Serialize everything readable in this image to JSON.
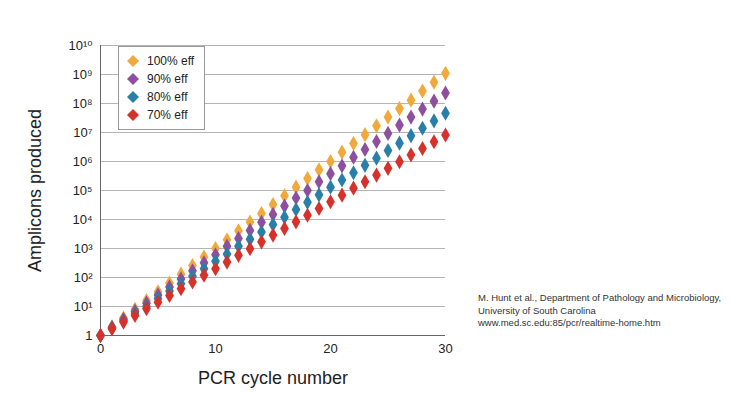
{
  "chart_data": {
    "type": "scatter",
    "x_label": "PCR cycle number",
    "y_label": "Amplicons produced",
    "source": "M. Hunt et al., Department of Pathology and Microbiology, University of South Carolina www.med.sc.edu:85/pcr/realtime-home.htm",
    "x": [
      0,
      1,
      2,
      3,
      4,
      5,
      6,
      7,
      8,
      9,
      10,
      11,
      12,
      13,
      14,
      15,
      16,
      17,
      18,
      19,
      20,
      21,
      22,
      23,
      24,
      25,
      26,
      27,
      28,
      29,
      30
    ],
    "series": [
      {
        "name": "100% eff",
        "color": "#f2a93b",
        "marker": "diamond",
        "values": [
          1,
          2,
          4,
          8,
          16,
          32,
          64,
          130,
          260,
          510,
          1000,
          2000,
          4100,
          8200,
          16000,
          33000,
          66000,
          130000,
          260000,
          520000,
          1000000,
          2100000,
          4200000,
          8400000,
          17000000,
          34000000,
          67000000,
          130000000,
          270000000,
          540000000,
          1100000000
        ]
      },
      {
        "name": "90% eff",
        "color": "#8e4f9e",
        "marker": "diamond",
        "values": [
          1,
          1.9,
          3.6,
          6.9,
          13,
          25,
          47,
          89,
          170,
          320,
          610,
          1200,
          2200,
          4200,
          8000,
          15000,
          29000,
          55000,
          100000,
          200000,
          380000,
          710000,
          1400000,
          2600000,
          4900000,
          9300000,
          18000000,
          34000000,
          64000000,
          120000000,
          230000000
        ]
      },
      {
        "name": "80% eff",
        "color": "#2a7fa8",
        "marker": "diamond",
        "values": [
          1,
          1.8,
          3.2,
          5.8,
          10,
          19,
          34,
          61,
          110,
          200,
          360,
          640,
          1200,
          2100,
          3700,
          6700,
          12000,
          22000,
          39000,
          71000,
          130000,
          230000,
          410000,
          740000,
          1300000,
          2400000,
          4300000,
          7800000,
          14000000,
          25000000,
          46000000
        ]
      },
      {
        "name": "70% eff",
        "color": "#d6312b",
        "marker": "diamond",
        "values": [
          1,
          1.7,
          2.9,
          4.9,
          8.4,
          14,
          24,
          41,
          70,
          120,
          200,
          340,
          580,
          990,
          1700,
          2900,
          4900,
          8300,
          14000,
          24000,
          41000,
          69000,
          120000,
          200000,
          340000,
          580000,
          980000,
          1700000,
          2800000,
          4800000,
          8200000
        ]
      }
    ],
    "xlim": [
      0,
      30
    ],
    "xticks": [
      0,
      10,
      20,
      30
    ],
    "ylim": [
      1,
      10000000000
    ],
    "yticks": [
      1,
      {
        "value": 10,
        "label": "10¹"
      },
      {
        "value": 100,
        "label": "10²"
      },
      {
        "value": 1000,
        "label": "10³"
      },
      {
        "value": 10000,
        "label": "10⁴"
      },
      {
        "value": 100000,
        "label": "10⁵"
      },
      {
        "value": 1000000,
        "label": "10⁶"
      },
      {
        "value": 10000000,
        "label": "10⁷"
      },
      {
        "value": 100000000,
        "label": "10⁸"
      },
      {
        "value": 1000000000,
        "label": "10⁹"
      },
      {
        "value": 10000000000,
        "label": "10¹⁰"
      }
    ],
    "log": "y",
    "grid": true,
    "legend": "top-left"
  }
}
